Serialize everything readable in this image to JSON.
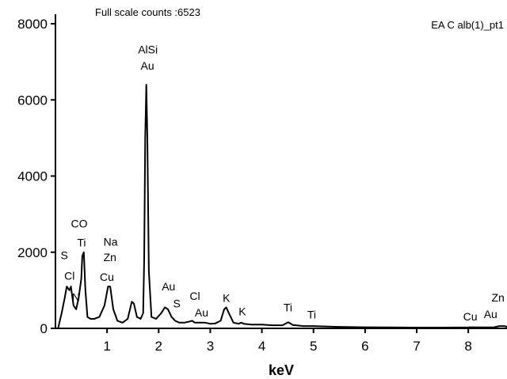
{
  "chart_data": {
    "type": "line",
    "title": "Full scale counts :6523",
    "subtitle": "EA C alb(1)_pt1",
    "xlabel": "keV",
    "ylabel": "",
    "xlim": [
      0,
      8.75
    ],
    "ylim": [
      0,
      8000
    ],
    "xticks": [
      "1",
      "2",
      "3",
      "4",
      "5",
      "6",
      "7",
      "8"
    ],
    "yticks": [
      "0",
      "2000",
      "4000",
      "6000",
      "8000"
    ],
    "grid": false,
    "legend": "none",
    "line_color": "#000000",
    "series": [
      {
        "x": [
          0.05,
          0.12,
          0.18,
          0.22,
          0.27,
          0.3,
          0.35,
          0.4,
          0.45,
          0.5,
          0.52,
          0.55,
          0.58,
          0.62,
          0.68,
          0.75,
          0.85,
          0.95,
          1.02,
          1.06,
          1.12,
          1.2,
          1.3,
          1.4,
          1.48,
          1.52,
          1.58,
          1.65,
          1.7,
          1.72,
          1.74,
          1.76,
          1.78,
          1.81,
          1.86,
          1.95,
          2.05,
          2.12,
          2.18,
          2.25,
          2.32,
          2.4,
          2.5,
          2.6,
          2.65,
          2.7,
          2.8,
          2.9,
          3.0,
          3.1,
          3.2,
          3.27,
          3.31,
          3.36,
          3.45,
          3.55,
          3.6,
          3.65,
          3.8,
          4.0,
          4.2,
          4.4,
          4.51,
          4.6,
          4.8,
          5.0,
          5.5,
          6.0,
          6.5,
          7.0,
          7.5,
          8.0,
          8.05,
          8.3,
          8.5,
          8.6,
          8.7,
          8.75
        ],
        "y": [
          0,
          400,
          800,
          1100,
          1000,
          1100,
          600,
          500,
          800,
          1300,
          1900,
          2000,
          1000,
          300,
          250,
          250,
          300,
          600,
          1100,
          1100,
          500,
          200,
          150,
          250,
          700,
          650,
          300,
          250,
          400,
          1800,
          5000,
          6400,
          5000,
          1500,
          300,
          250,
          400,
          550,
          500,
          300,
          200,
          150,
          150,
          180,
          200,
          150,
          150,
          150,
          120,
          130,
          200,
          500,
          550,
          400,
          150,
          120,
          150,
          120,
          100,
          100,
          80,
          80,
          160,
          90,
          60,
          60,
          40,
          30,
          25,
          20,
          20,
          25,
          30,
          25,
          30,
          60,
          60,
          40
        ]
      }
    ],
    "annotations": [
      {
        "text": "S",
        "x": 0.1,
        "y": 1820
      },
      {
        "text": "Cl",
        "x": 0.17,
        "y": 1280
      },
      {
        "text": "CO",
        "x": 0.3,
        "y": 2650
      },
      {
        "text": "Ti",
        "x": 0.42,
        "y": 2150
      },
      {
        "text": "N",
        "x": 0.32,
        "y": 720
      },
      {
        "text": "Na",
        "x": 0.93,
        "y": 2170
      },
      {
        "text": "Zn",
        "x": 0.93,
        "y": 1770
      },
      {
        "text": "Cu",
        "x": 0.86,
        "y": 1250
      },
      {
        "text": "AlSi",
        "x": 1.6,
        "y": 7220
      },
      {
        "text": "Au",
        "x": 1.65,
        "y": 6800
      },
      {
        "text": "Au",
        "x": 2.06,
        "y": 1000
      },
      {
        "text": "S",
        "x": 2.28,
        "y": 550
      },
      {
        "text": "Cl",
        "x": 2.6,
        "y": 750
      },
      {
        "text": "Au",
        "x": 2.7,
        "y": 310
      },
      {
        "text": "K",
        "x": 3.24,
        "y": 700
      },
      {
        "text": "K",
        "x": 3.55,
        "y": 340
      },
      {
        "text": "Ti",
        "x": 4.42,
        "y": 450
      },
      {
        "text": "Ti",
        "x": 4.88,
        "y": 260
      },
      {
        "text": "Cu",
        "x": 7.9,
        "y": 210
      },
      {
        "text": "Au",
        "x": 8.3,
        "y": 270
      },
      {
        "text": "Zn",
        "x": 8.45,
        "y": 710
      }
    ]
  }
}
